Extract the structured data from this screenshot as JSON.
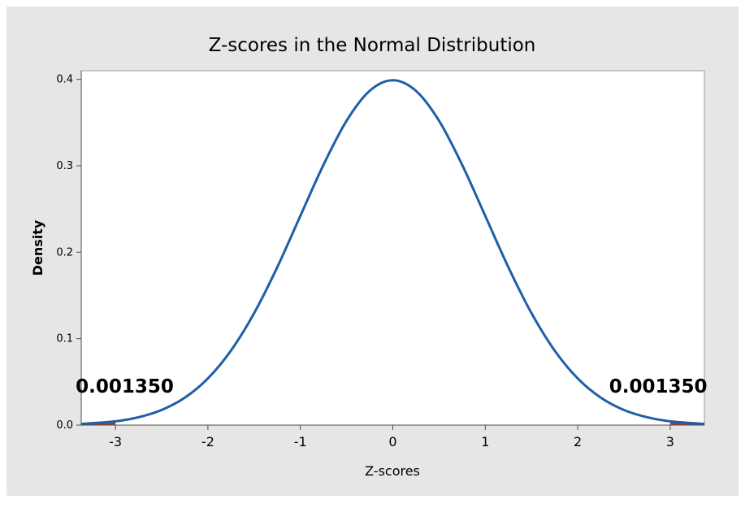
{
  "chart_data": {
    "type": "line",
    "title": "Z-scores in the Normal Distribution",
    "xlabel": "Z-scores",
    "ylabel": "Density",
    "xlim": [
      -3.37,
      3.37
    ],
    "ylim": [
      0,
      0.41
    ],
    "x_ticks": [
      -3,
      -2,
      -1,
      0,
      1,
      2,
      3
    ],
    "x_tick_labels": [
      "-3",
      "-2",
      "-1",
      "0",
      "1",
      "2",
      "3"
    ],
    "y_ticks": [
      0.0,
      0.1,
      0.2,
      0.3,
      0.4
    ],
    "y_tick_labels": [
      "0.0",
      "0.1",
      "0.2",
      "0.3",
      "0.4"
    ],
    "grid": false,
    "legend": "none",
    "series": [
      {
        "curve": "standard normal density",
        "x": [
          -3.37,
          -3.0,
          -2.75,
          -2.5,
          -2.25,
          -2.0,
          -1.75,
          -1.5,
          -1.25,
          -1.0,
          -0.75,
          -0.5,
          -0.25,
          0.0,
          0.25,
          0.5,
          0.75,
          1.0,
          1.25,
          1.5,
          1.75,
          2.0,
          2.25,
          2.5,
          2.75,
          3.0,
          3.37
        ],
        "y": [
          0.0014,
          0.0044,
          0.0091,
          0.0175,
          0.0317,
          0.054,
          0.0863,
          0.1295,
          0.1826,
          0.242,
          0.3011,
          0.3521,
          0.3867,
          0.3989,
          0.3867,
          0.3521,
          0.3011,
          0.242,
          0.1826,
          0.1295,
          0.0863,
          0.054,
          0.0317,
          0.0175,
          0.0091,
          0.0044,
          0.0014
        ]
      }
    ],
    "shaded_regions": [
      {
        "x_from": -3.37,
        "x_to": -3.0
      },
      {
        "x_from": 3.0,
        "x_to": 3.37
      }
    ],
    "annotations": [
      {
        "text": "0.001350",
        "x": -2.9,
        "y": 0.045
      },
      {
        "text": "0.001350",
        "x": 2.87,
        "y": 0.045
      }
    ],
    "colors": {
      "outer_background": "#e6e6e6",
      "plot_background": "#ffffff",
      "line": "#1f5fa8",
      "shade": "#a33b3b",
      "text": "#000000",
      "axis": "#4d4d4d"
    }
  }
}
